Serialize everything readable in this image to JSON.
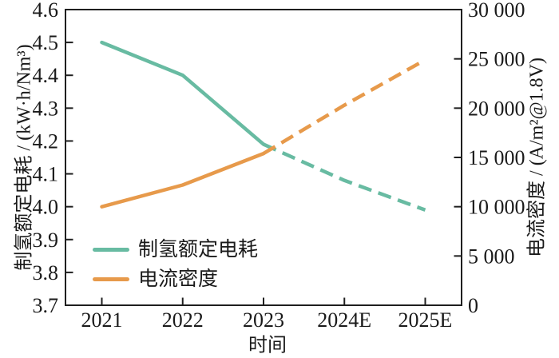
{
  "chart_data": {
    "type": "line",
    "title": "",
    "x_axis": {
      "label": "时间",
      "categories": [
        "2021",
        "2022",
        "2023",
        "2024E",
        "2025E"
      ]
    },
    "left_axis": {
      "label": "制氢额定电耗 / (kW·h/Nm³)",
      "min": 3.7,
      "max": 4.6,
      "tick_values": [
        4.6,
        4.5,
        4.4,
        4.3,
        4.2,
        4.1,
        4.0,
        3.9,
        3.8,
        3.7
      ],
      "tick_labels": [
        "4.6",
        "4.5",
        "4.4",
        "4.3",
        "4.2",
        "4.1",
        "4.0",
        "3.9",
        "3.8",
        "3.7"
      ]
    },
    "right_axis": {
      "label": "电流密度 / (A/m²@1.8V)",
      "min": 0,
      "max": 30000,
      "tick_values": [
        30000,
        25000,
        20000,
        15000,
        10000,
        5000,
        0
      ],
      "tick_labels": [
        "30 000",
        "25 000",
        "20 000",
        "15 000",
        "10 000",
        "5 000",
        "0"
      ]
    },
    "series": [
      {
        "name": "制氢额定电耗",
        "axis": "left",
        "color": "#68bba2",
        "values": [
          4.5,
          4.4,
          4.19,
          4.08,
          3.99
        ],
        "dash_from_index": 2,
        "note": "solid 2021-2023, dashed 2023-2025E"
      },
      {
        "name": "电流密度",
        "axis": "right",
        "color": "#e79a4b",
        "values": [
          10000,
          12200,
          15400,
          20300,
          24900
        ],
        "dash_from_index": 2,
        "note": "solid 2021-2023, dashed 2023-2025E"
      }
    ],
    "legend": {
      "position": "lower-left"
    },
    "grid": "off",
    "frame": "full-box, ticks inward"
  }
}
